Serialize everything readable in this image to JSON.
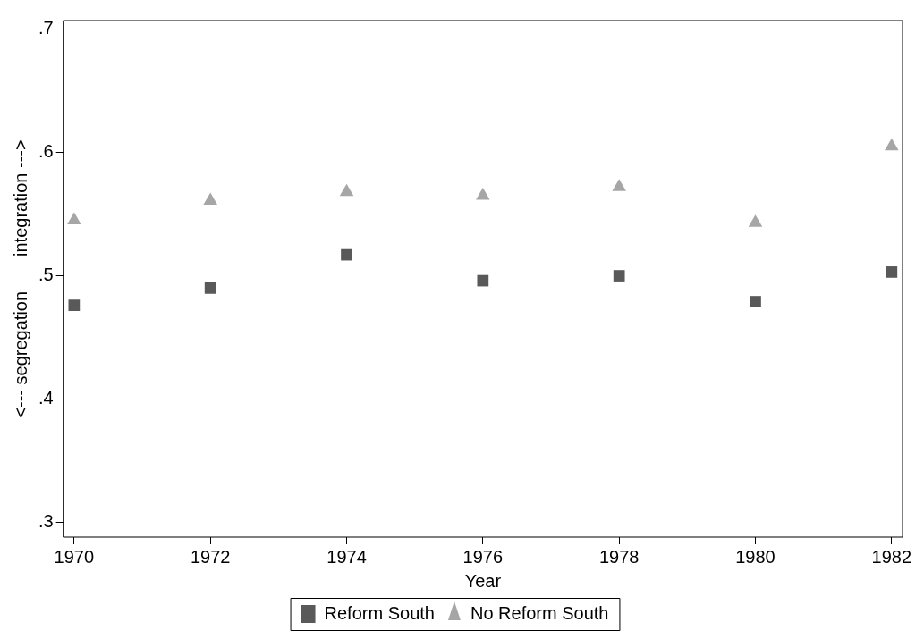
{
  "chart_data": {
    "type": "scatter",
    "xlabel": "Year",
    "ylabel": "<--- segregation       integration --->",
    "x": [
      1970,
      1972,
      1974,
      1976,
      1978,
      1980,
      1982
    ],
    "series": [
      {
        "name": "Reform South",
        "color": "#595959",
        "marker": "square",
        "values": [
          0.476,
          0.49,
          0.517,
          0.496,
          0.5,
          0.479,
          0.503
        ]
      },
      {
        "name": "No Reform South",
        "color": "#a6a6a6",
        "marker": "triangle",
        "values": [
          0.545,
          0.561,
          0.568,
          0.565,
          0.572,
          0.543,
          0.605
        ]
      }
    ],
    "xlim": [
      1969.84,
      1982.16
    ],
    "xticks": [
      1970,
      1972,
      1974,
      1976,
      1978,
      1980,
      1982
    ],
    "ylim": [
      0.288,
      0.707
    ],
    "yticks": [
      {
        "value": 0.3,
        "label": ".3"
      },
      {
        "value": 0.4,
        "label": ".4"
      },
      {
        "value": 0.5,
        "label": ".5"
      },
      {
        "value": 0.6,
        "label": ".6"
      },
      {
        "value": 0.7,
        "label": ".7"
      }
    ],
    "grid": false,
    "legend": "bottom"
  }
}
